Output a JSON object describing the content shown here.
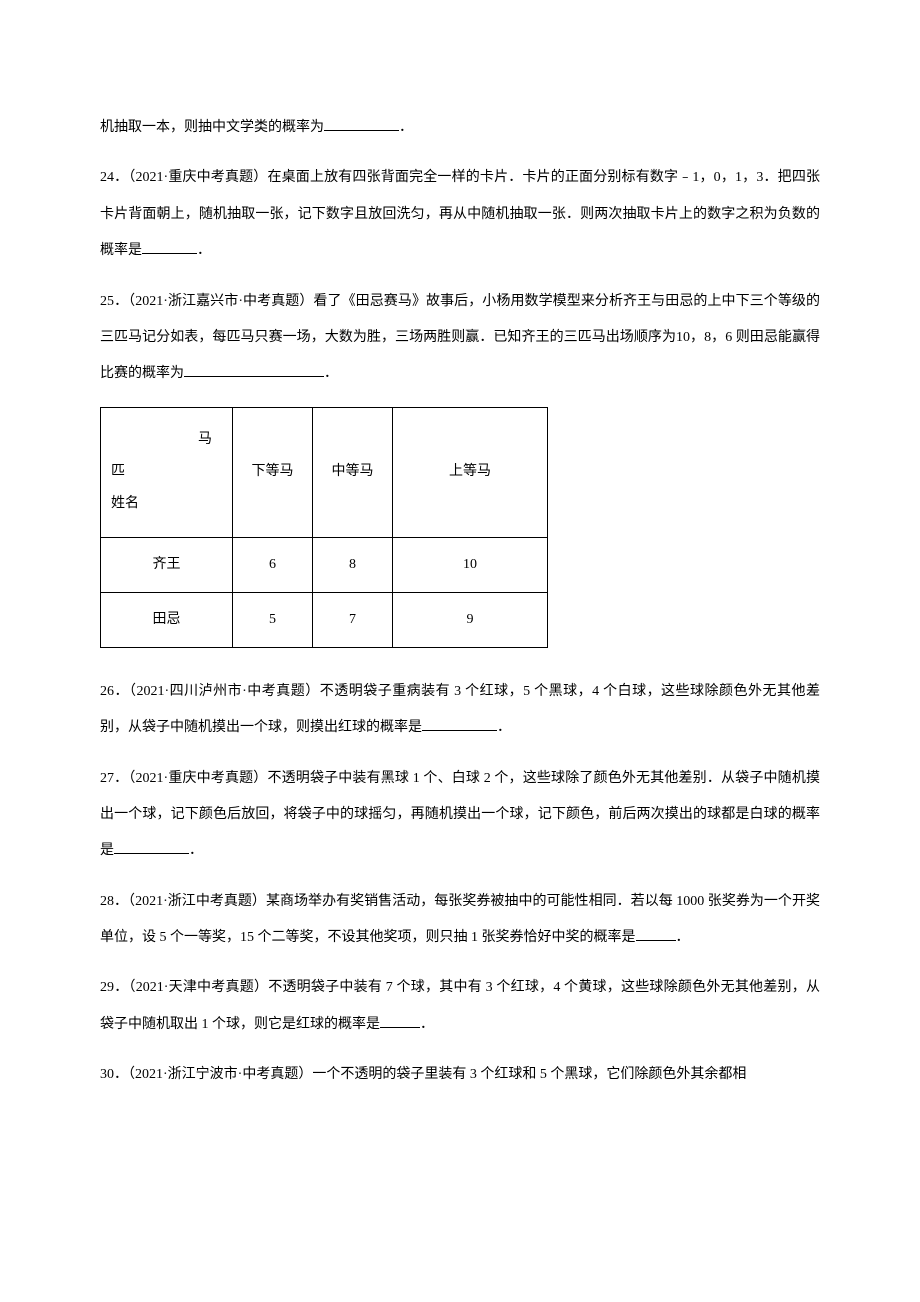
{
  "q23_fragment": "机抽取一本，则抽中文学类的概率为",
  "period": "．",
  "q24": {
    "part1": "24．（2021·重庆中考真题）在桌面上放有四张背面完全一样的卡片．卡片的正面分别标有数字﹣1，0，1，3．把四张卡片背面朝上，随机抽取一张，记下数字且放回洗匀，再从中随机抽取一张．则两次抽取卡片上的数字之积为负数的概率是",
    "part2": "．"
  },
  "q25": {
    "part1": "25．（2021·浙江嘉兴市·中考真题）看了《田忌赛马》故事后，小杨用数学模型来分析齐王与田忌的上中下三个等级的三匹马记分如表，每匹马只赛一场，大数为胜，三场两胜则赢．已知齐王的三匹马出场顺序为10，8，6 则田忌能赢得比赛的概率为",
    "part2": "．"
  },
  "table": {
    "header_diag_top": "马",
    "header_diag_middle": "匹",
    "header_diag_bottom": "姓名",
    "col_lower": "下等马",
    "col_middle": "中等马",
    "col_upper": "上等马",
    "row1_name": "齐王",
    "row1_lower": "6",
    "row1_middle": "8",
    "row1_upper": "10",
    "row2_name": "田忌",
    "row2_lower": "5",
    "row2_middle": "7",
    "row2_upper": "9"
  },
  "q26": {
    "part1": "26．（2021·四川泸州市·中考真题）不透明袋子重病装有 3 个红球，5 个黑球，4 个白球，这些球除颜色外无其他差别，从袋子中随机摸出一个球，则摸出红球的概率是",
    "part2": "．"
  },
  "q27": {
    "part1": "27．（2021·重庆中考真题）不透明袋子中装有黑球 1 个、白球 2 个，这些球除了颜色外无其他差别．从袋子中随机摸出一个球，记下颜色后放回，将袋子中的球摇匀，再随机摸出一个球，记下颜色，前后两次摸出的球都是白球的概率是",
    "part2": "．"
  },
  "q28": {
    "part1": "28．（2021·浙江中考真题）某商场举办有奖销售活动，每张奖券被抽中的可能性相同．若以每 1000 张奖券为一个开奖单位，设 5 个一等奖，15 个二等奖，不设其他奖项，则只抽 1 张奖券恰好中奖的概率是",
    "part2": "．"
  },
  "q29": {
    "part1": "29．（2021·天津中考真题）不透明袋子中装有 7 个球，其中有 3 个红球，4 个黄球，这些球除颜色外无其他差别，从袋子中随机取出 1 个球，则它是红球的概率是",
    "part2": "．"
  },
  "q30_fragment": "30．（2021·浙江宁波市·中考真题）一个不透明的袋子里装有 3 个红球和 5 个黑球，它们除颜色外其余都相"
}
